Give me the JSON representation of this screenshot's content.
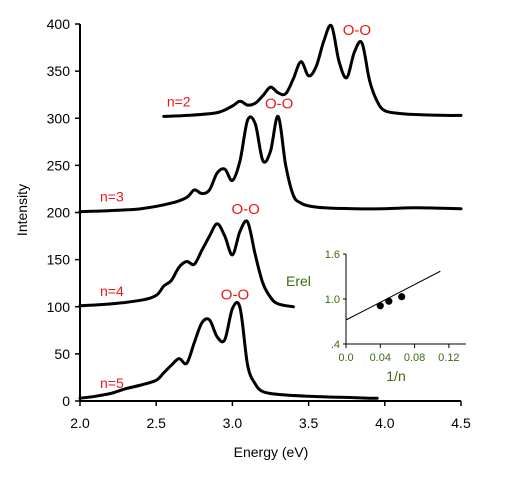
{
  "colors": {
    "axis": "#000000",
    "curve": "#000000",
    "label_red": "#e8191b",
    "inset_green": "#3d6b10"
  },
  "chart_data": [
    {
      "type": "line",
      "xlabel": "Energy (eV)",
      "ylabel": "Intensity",
      "xlim": [
        2.0,
        4.5
      ],
      "ylim": [
        0,
        400
      ],
      "x_ticks": [
        "2.0",
        "2.5",
        "3.0",
        "3.5",
        "4.0",
        "4.5"
      ],
      "y_ticks": [
        "0",
        "50",
        "100",
        "150",
        "200",
        "250",
        "300",
        "350",
        "400"
      ],
      "peak_label": "O-O",
      "series": [
        {
          "name": "n=5",
          "peak_energy": 3.03,
          "x": [
            2.0,
            2.1,
            2.2,
            2.3,
            2.4,
            2.5,
            2.55,
            2.6,
            2.65,
            2.7,
            2.75,
            2.8,
            2.85,
            2.9,
            2.95,
            3.0,
            3.05,
            3.1,
            3.15,
            3.2,
            3.3,
            3.5,
            3.7,
            3.9,
            3.95
          ],
          "y": [
            3,
            5,
            8,
            13,
            17,
            22,
            30,
            38,
            45,
            40,
            62,
            83,
            86,
            68,
            65,
            98,
            99,
            38,
            18,
            10,
            7,
            5,
            4,
            3,
            3
          ]
        },
        {
          "name": "n=4",
          "peak_energy": 3.1,
          "x": [
            2.0,
            2.2,
            2.4,
            2.5,
            2.55,
            2.6,
            2.65,
            2.7,
            2.75,
            2.8,
            2.85,
            2.9,
            2.95,
            3.0,
            3.05,
            3.1,
            3.15,
            3.2,
            3.25,
            3.3,
            3.4
          ],
          "y": [
            101,
            103,
            107,
            112,
            122,
            128,
            142,
            148,
            145,
            160,
            175,
            188,
            175,
            155,
            180,
            190,
            155,
            125,
            110,
            103,
            100
          ]
        },
        {
          "name": "n=3",
          "peak_energy": 3.32,
          "x": [
            2.0,
            2.2,
            2.4,
            2.6,
            2.7,
            2.75,
            2.8,
            2.85,
            2.9,
            2.95,
            3.0,
            3.05,
            3.1,
            3.15,
            3.2,
            3.25,
            3.3,
            3.35,
            3.4,
            3.45,
            3.5,
            3.6,
            3.8,
            4.0,
            4.2,
            4.5
          ],
          "y": [
            201,
            202,
            204,
            210,
            216,
            224,
            220,
            224,
            242,
            246,
            234,
            255,
            298,
            294,
            255,
            265,
            302,
            250,
            218,
            210,
            207,
            205,
            204,
            204,
            205,
            204
          ]
        },
        {
          "name": "n=2",
          "peak_energy": 3.83,
          "x": [
            2.55,
            2.7,
            2.9,
            3.0,
            3.05,
            3.1,
            3.15,
            3.2,
            3.25,
            3.3,
            3.35,
            3.4,
            3.45,
            3.5,
            3.55,
            3.6,
            3.65,
            3.7,
            3.75,
            3.8,
            3.85,
            3.9,
            3.95,
            4.0,
            4.1,
            4.2,
            4.4,
            4.5
          ],
          "y": [
            302,
            303,
            306,
            313,
            318,
            314,
            316,
            324,
            333,
            327,
            326,
            342,
            360,
            345,
            355,
            382,
            398,
            360,
            343,
            370,
            380,
            340,
            318,
            308,
            305,
            304,
            303,
            303
          ]
        }
      ]
    },
    {
      "type": "scatter",
      "xlabel": "1/n",
      "ylabel": "Erel",
      "xlim": [
        0.0,
        0.14
      ],
      "ylim": [
        0.4,
        1.6
      ],
      "x_ticks": [
        "0.0",
        "0.04",
        "0.08",
        "0.12"
      ],
      "y_ticks": [
        ".4",
        "1.0",
        "1.6"
      ],
      "points": {
        "x": [
          0.04,
          0.05,
          0.065
        ],
        "y": [
          0.91,
          0.97,
          1.03
        ]
      },
      "fit_line": {
        "x": [
          0.0,
          0.11
        ],
        "y": [
          0.72,
          1.37
        ]
      }
    }
  ]
}
